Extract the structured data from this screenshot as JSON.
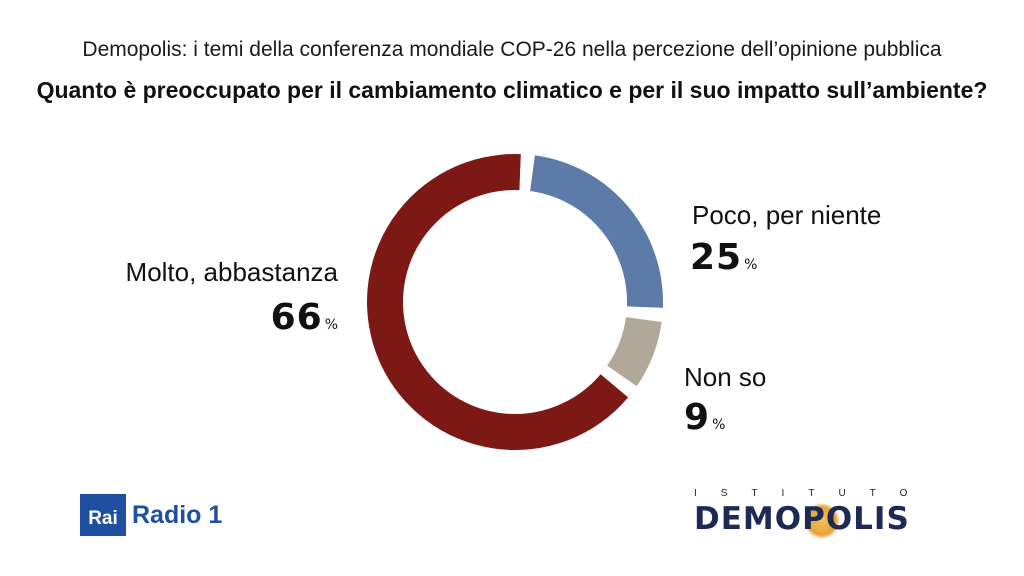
{
  "header": {
    "subtitle": "Demopolis: i temi della conferenza mondiale COP-26 nella percezione dell’opinione pubblica",
    "title": "Quanto è preoccupato per il cambiamento climatico e per il suo impatto sull’ambiente?"
  },
  "chart_data": {
    "type": "pie",
    "title": "Quanto è preoccupato per il cambiamento climatico e per il suo impatto sull’ambiente?",
    "unit": "%",
    "slices": [
      {
        "label": "Poco, per niente",
        "value": 25,
        "display": "25",
        "color": "#5c7ba8"
      },
      {
        "label": "Non so",
        "value": 9,
        "display": "9",
        "color": "#b1a89a"
      },
      {
        "label": "Molto, abbastanza",
        "value": 66,
        "display": "66",
        "color": "#7d1914"
      }
    ]
  },
  "footer": {
    "rai_box": "Rai",
    "rai_text": "Radio 1",
    "demopolis_top": "ISTITUTO",
    "demopolis_name": "DEMOPOLIS"
  }
}
